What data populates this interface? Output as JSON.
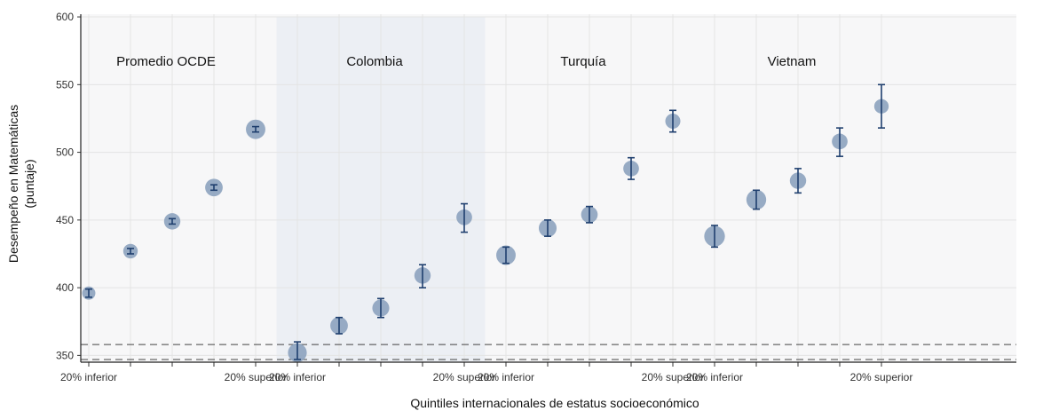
{
  "chart_data": {
    "type": "scatter",
    "title": "",
    "xlabel": "Quintiles internacionales de estatus socioeconómico",
    "ylabel_line1": "Desempeño en Matemáticas",
    "ylabel_line2": "(puntaje)",
    "ylim": [
      345,
      602
    ],
    "yticks": [
      "350",
      "400",
      "450",
      "500",
      "550",
      "600"
    ],
    "grid": true,
    "reference_lines": [
      347,
      358
    ],
    "quintile_labels": [
      "20% inferior",
      "20% superior"
    ],
    "colors": {
      "marker": "#8ea4bf",
      "errorbar": "#1f3f6e",
      "shade": "#eceff4",
      "panel": "#f7f7f8",
      "grid": "#e4e4e4",
      "refline": "#444444"
    },
    "groups": [
      {
        "name": "Promedio OCDE",
        "shaded": false,
        "points": [
          {
            "quintile": 1,
            "value": 396,
            "ci": [
              393,
              399
            ],
            "size": 0.35
          },
          {
            "quintile": 2,
            "value": 427,
            "ci": [
              425,
              429
            ],
            "size": 0.45
          },
          {
            "quintile": 3,
            "value": 449,
            "ci": [
              447,
              451
            ],
            "size": 0.6
          },
          {
            "quintile": 4,
            "value": 474,
            "ci": [
              472,
              476
            ],
            "size": 0.7
          },
          {
            "quintile": 5,
            "value": 517,
            "ci": [
              515,
              519
            ],
            "size": 0.85
          }
        ]
      },
      {
        "name": "Colombia",
        "shaded": true,
        "points": [
          {
            "quintile": 1,
            "value": 352,
            "ci": [
              347,
              360
            ],
            "size": 0.8
          },
          {
            "quintile": 2,
            "value": 372,
            "ci": [
              366,
              378
            ],
            "size": 0.7
          },
          {
            "quintile": 3,
            "value": 385,
            "ci": [
              378,
              392
            ],
            "size": 0.65
          },
          {
            "quintile": 4,
            "value": 409,
            "ci": [
              400,
              417
            ],
            "size": 0.6
          },
          {
            "quintile": 5,
            "value": 452,
            "ci": [
              441,
              462
            ],
            "size": 0.55
          }
        ]
      },
      {
        "name": "Turquía",
        "shaded": false,
        "points": [
          {
            "quintile": 1,
            "value": 424,
            "ci": [
              418,
              430
            ],
            "size": 0.85
          },
          {
            "quintile": 2,
            "value": 444,
            "ci": [
              438,
              450
            ],
            "size": 0.72
          },
          {
            "quintile": 3,
            "value": 454,
            "ci": [
              448,
              460
            ],
            "size": 0.62
          },
          {
            "quintile": 4,
            "value": 488,
            "ci": [
              480,
              496
            ],
            "size": 0.55
          },
          {
            "quintile": 5,
            "value": 523,
            "ci": [
              515,
              531
            ],
            "size": 0.5
          }
        ]
      },
      {
        "name": "Vietnam",
        "shaded": false,
        "points": [
          {
            "quintile": 1,
            "value": 438,
            "ci": [
              430,
              446
            ],
            "size": 0.95
          },
          {
            "quintile": 2,
            "value": 465,
            "ci": [
              458,
              472
            ],
            "size": 0.88
          },
          {
            "quintile": 3,
            "value": 479,
            "ci": [
              470,
              488
            ],
            "size": 0.6
          },
          {
            "quintile": 4,
            "value": 508,
            "ci": [
              497,
              518
            ],
            "size": 0.55
          },
          {
            "quintile": 5,
            "value": 534,
            "ci": [
              518,
              550
            ],
            "size": 0.45
          }
        ]
      }
    ]
  }
}
